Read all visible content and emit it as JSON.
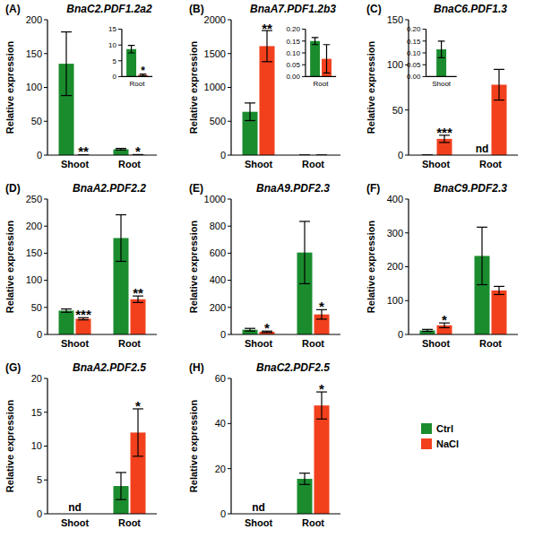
{
  "chart_data": [
    {
      "type": "bar",
      "panel": "(A)",
      "title": "BnaC2.PDF1.2a2",
      "y_label": "Relative expression",
      "categories": [
        "Shoot",
        "Root"
      ],
      "series": [
        {
          "name": "Ctrl",
          "color": "#1a8c2e",
          "values": [
            135,
            8.7
          ],
          "errors": [
            47,
            1.2
          ]
        },
        {
          "name": "NaCl",
          "color": "#f2401d",
          "values": [
            0.3,
            0.5
          ],
          "errors": [
            0.2,
            0.3
          ]
        }
      ],
      "ylim": [
        0,
        200
      ],
      "yticks": [
        0,
        50,
        100,
        150,
        200
      ],
      "annotations": [
        {
          "text": "**",
          "category": "Shoot",
          "series": "NaCl"
        },
        {
          "text": "*",
          "category": "Root",
          "series": "NaCl"
        }
      ],
      "inset": {
        "categories": [
          "Root"
        ],
        "series": [
          {
            "name": "Ctrl",
            "color": "#1a8c2e",
            "values": [
              8.7
            ],
            "errors": [
              1.2
            ]
          },
          {
            "name": "NaCl",
            "color": "#f2401d",
            "values": [
              0.5
            ],
            "errors": [
              0.3
            ]
          }
        ],
        "ylim": [
          0,
          15
        ],
        "yticks": [
          0,
          5,
          10,
          15
        ],
        "annotations": [
          {
            "text": "*",
            "category": "Root",
            "series": "NaCl"
          }
        ]
      }
    },
    {
      "type": "bar",
      "panel": "(B)",
      "title": "BnaA7.PDF1.2b3",
      "y_label": "Relative expression",
      "categories": [
        "Shoot",
        "Root"
      ],
      "series": [
        {
          "name": "Ctrl",
          "color": "#1a8c2e",
          "values": [
            640,
            0.15
          ],
          "errors": [
            130,
            0.015
          ]
        },
        {
          "name": "NaCl",
          "color": "#f2401d",
          "values": [
            1610,
            0.075
          ],
          "errors": [
            230,
            0.06
          ]
        }
      ],
      "ylim": [
        0,
        2000
      ],
      "yticks": [
        0,
        500,
        1000,
        1500,
        2000
      ],
      "annotations": [
        {
          "text": "**",
          "category": "Shoot",
          "series": "NaCl"
        }
      ],
      "inset": {
        "categories": [
          "Root"
        ],
        "series": [
          {
            "name": "Ctrl",
            "color": "#1a8c2e",
            "values": [
              0.15
            ],
            "errors": [
              0.015
            ]
          },
          {
            "name": "NaCl",
            "color": "#f2401d",
            "values": [
              0.075
            ],
            "errors": [
              0.06
            ]
          }
        ],
        "ylim": [
          0,
          0.2
        ],
        "yticks": [
          {
            "value": 0,
            "label": "0.00"
          },
          {
            "value": 0.05,
            "label": "0.05"
          },
          {
            "value": 0.1,
            "label": "0.10"
          },
          {
            "value": 0.15,
            "label": "0.15"
          },
          {
            "value": 0.2,
            "label": "0.20"
          }
        ]
      }
    },
    {
      "type": "bar",
      "panel": "(C)",
      "title": "BnaC6.PDF1.3",
      "y_label": "Relative expression",
      "categories": [
        "Shoot",
        "Root"
      ],
      "series": [
        {
          "name": "Ctrl",
          "color": "#1a8c2e",
          "values": [
            0.115,
            null
          ],
          "errors": [
            0.035,
            null
          ]
        },
        {
          "name": "NaCl",
          "color": "#f2401d",
          "values": [
            18,
            78
          ],
          "errors": [
            4,
            17
          ]
        }
      ],
      "ylim": [
        0,
        150
      ],
      "yticks": [
        0,
        50,
        100,
        150
      ],
      "annotations": [
        {
          "text": "***",
          "category": "Shoot",
          "series": "NaCl"
        },
        {
          "text": "nd",
          "category": "Root",
          "series": "Ctrl"
        }
      ],
      "inset": {
        "categories": [
          "Shoot"
        ],
        "series": [
          {
            "name": "Ctrl",
            "color": "#1a8c2e",
            "values": [
              0.115
            ],
            "errors": [
              0.035
            ]
          }
        ],
        "ylim": [
          0,
          0.2
        ],
        "yticks": [
          {
            "value": 0,
            "label": "0.00"
          },
          {
            "value": 0.05,
            "label": "0.05"
          },
          {
            "value": 0.1,
            "label": "0.10"
          },
          {
            "value": 0.15,
            "label": "0.15"
          },
          {
            "value": 0.2,
            "label": "0.20"
          }
        ]
      }
    },
    {
      "type": "bar",
      "panel": "(D)",
      "title": "BnaA2.PDF2.2",
      "y_label": "Relative expression",
      "categories": [
        "Shoot",
        "Root"
      ],
      "series": [
        {
          "name": "Ctrl",
          "color": "#1a8c2e",
          "values": [
            44,
            178
          ],
          "errors": [
            3,
            43
          ]
        },
        {
          "name": "NaCl",
          "color": "#f2401d",
          "values": [
            29,
            65
          ],
          "errors": [
            2,
            6
          ]
        }
      ],
      "ylim": [
        0,
        250
      ],
      "yticks": [
        0,
        50,
        100,
        150,
        200,
        250
      ],
      "annotations": [
        {
          "text": "***",
          "category": "Shoot",
          "series": "NaCl"
        },
        {
          "text": "**",
          "category": "Root",
          "series": "NaCl"
        }
      ]
    },
    {
      "type": "bar",
      "panel": "(E)",
      "title": "BnaA9.PDF2.3",
      "y_label": "Relative expression",
      "categories": [
        "Shoot",
        "Root"
      ],
      "series": [
        {
          "name": "Ctrl",
          "color": "#1a8c2e",
          "values": [
            35,
            605
          ],
          "errors": [
            10,
            230
          ]
        },
        {
          "name": "NaCl",
          "color": "#f2401d",
          "values": [
            20,
            148
          ],
          "errors": [
            5,
            35
          ]
        }
      ],
      "ylim": [
        0,
        1000
      ],
      "yticks": [
        0,
        200,
        400,
        600,
        800,
        1000
      ],
      "annotations": [
        {
          "text": "*",
          "category": "Shoot",
          "series": "NaCl"
        },
        {
          "text": "*",
          "category": "Root",
          "series": "NaCl"
        }
      ]
    },
    {
      "type": "bar",
      "panel": "(F)",
      "title": "BnaC9.PDF2.3",
      "y_label": "Relative expression",
      "categories": [
        "Shoot",
        "Root"
      ],
      "series": [
        {
          "name": "Ctrl",
          "color": "#1a8c2e",
          "values": [
            12,
            232
          ],
          "errors": [
            3,
            85
          ]
        },
        {
          "name": "NaCl",
          "color": "#f2401d",
          "values": [
            27,
            130
          ],
          "errors": [
            7,
            12
          ]
        }
      ],
      "ylim": [
        0,
        400
      ],
      "yticks": [
        0,
        100,
        200,
        300,
        400
      ],
      "annotations": [
        {
          "text": "*",
          "category": "Shoot",
          "series": "NaCl"
        }
      ]
    },
    {
      "type": "bar",
      "panel": "(G)",
      "title": "BnaA2.PDF2.5",
      "y_label": "Relative expression",
      "categories": [
        "Shoot",
        "Root"
      ],
      "series": [
        {
          "name": "Ctrl",
          "color": "#1a8c2e",
          "values": [
            null,
            4.1
          ],
          "errors": [
            null,
            2
          ]
        },
        {
          "name": "NaCl",
          "color": "#f2401d",
          "values": [
            null,
            12
          ],
          "errors": [
            null,
            3.5
          ]
        }
      ],
      "ylim": [
        0,
        20
      ],
      "yticks": [
        0,
        5,
        10,
        15,
        20
      ],
      "annotations": [
        {
          "text": "nd",
          "category": "Shoot"
        },
        {
          "text": "*",
          "category": "Root",
          "series": "NaCl"
        }
      ]
    },
    {
      "type": "bar",
      "panel": "(H)",
      "title": "BnaC2.PDF2.5",
      "y_label": "Relative expression",
      "categories": [
        "Shoot",
        "Root"
      ],
      "series": [
        {
          "name": "Ctrl",
          "color": "#1a8c2e",
          "values": [
            null,
            15.5
          ],
          "errors": [
            null,
            2.5
          ]
        },
        {
          "name": "NaCl",
          "color": "#f2401d",
          "values": [
            null,
            48
          ],
          "errors": [
            null,
            6
          ]
        }
      ],
      "ylim": [
        0,
        60
      ],
      "yticks": [
        0,
        20,
        40,
        60
      ],
      "annotations": [
        {
          "text": "nd",
          "category": "Shoot"
        },
        {
          "text": "*",
          "category": "Root",
          "series": "NaCl"
        }
      ],
      "legend": "right"
    }
  ]
}
